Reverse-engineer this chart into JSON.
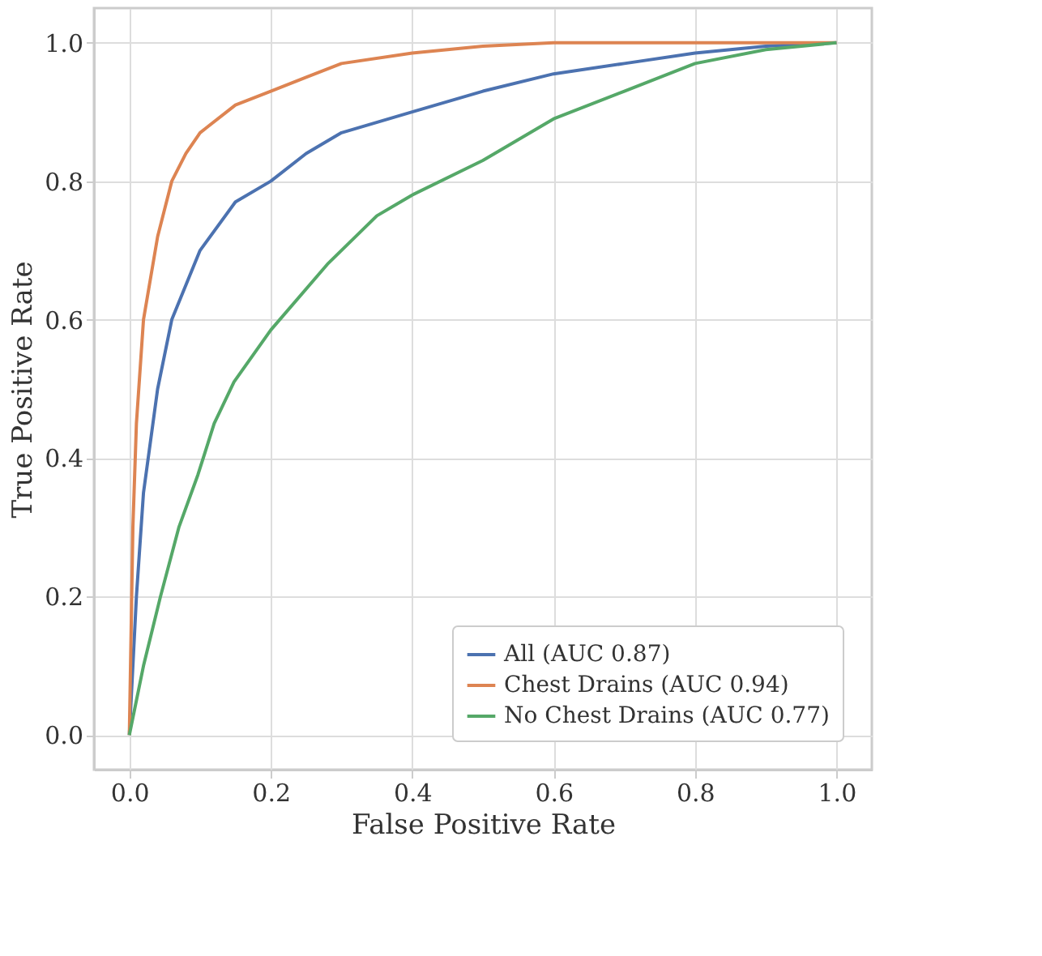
{
  "chart_data": {
    "type": "line",
    "xlabel": "False Positive Rate",
    "ylabel": "True Positive Rate",
    "xlim": [
      -0.05,
      1.05
    ],
    "ylim": [
      -0.05,
      1.05
    ],
    "xticks": [
      {
        "value": 0,
        "label": "0.0"
      },
      0.2,
      0.4,
      0.6,
      0.8,
      {
        "value": 1,
        "label": "1.0"
      }
    ],
    "yticks": [
      {
        "value": 0,
        "label": "0.0"
      },
      0.2,
      0.4,
      0.6,
      0.8,
      {
        "value": 1,
        "label": "1.0"
      }
    ],
    "grid": true,
    "legend": "bottom right",
    "marker": "none",
    "line_style": "solid",
    "series": [
      {
        "name": "All (AUC 0.87)",
        "color": "#4c72b0",
        "x": [
          0,
          0.01,
          0.02,
          0.04,
          0.06,
          0.1,
          0.15,
          0.2,
          0.25,
          0.3,
          0.4,
          0.5,
          0.6,
          0.7,
          0.8,
          0.9,
          1
        ],
        "values": [
          0,
          0.2,
          0.35,
          0.5,
          0.6,
          0.7,
          0.77,
          0.8,
          0.84,
          0.87,
          0.9,
          0.93,
          0.955,
          0.97,
          0.985,
          0.995,
          1
        ]
      },
      {
        "name": "Chest Drains (AUC 0.94)",
        "color": "#dd8452",
        "x": [
          0,
          0.005,
          0.01,
          0.02,
          0.04,
          0.06,
          0.08,
          0.1,
          0.15,
          0.2,
          0.25,
          0.3,
          0.4,
          0.5,
          0.6,
          1
        ],
        "values": [
          0,
          0.3,
          0.45,
          0.6,
          0.72,
          0.8,
          0.84,
          0.87,
          0.91,
          0.93,
          0.95,
          0.97,
          0.985,
          0.995,
          1,
          1
        ]
      },
      {
        "name": "No Chest Drains (AUC 0.77)",
        "color": "#55a868",
        "x": [
          0,
          0.02,
          0.044,
          0.07,
          0.097,
          0.12,
          0.148,
          0.2,
          0.28,
          0.35,
          0.4,
          0.5,
          0.6,
          0.7,
          0.8,
          0.9,
          1
        ],
        "values": [
          0,
          0.1,
          0.2,
          0.3,
          0.376,
          0.45,
          0.51,
          0.585,
          0.68,
          0.75,
          0.78,
          0.83,
          0.89,
          0.93,
          0.97,
          0.99,
          1
        ]
      }
    ]
  }
}
